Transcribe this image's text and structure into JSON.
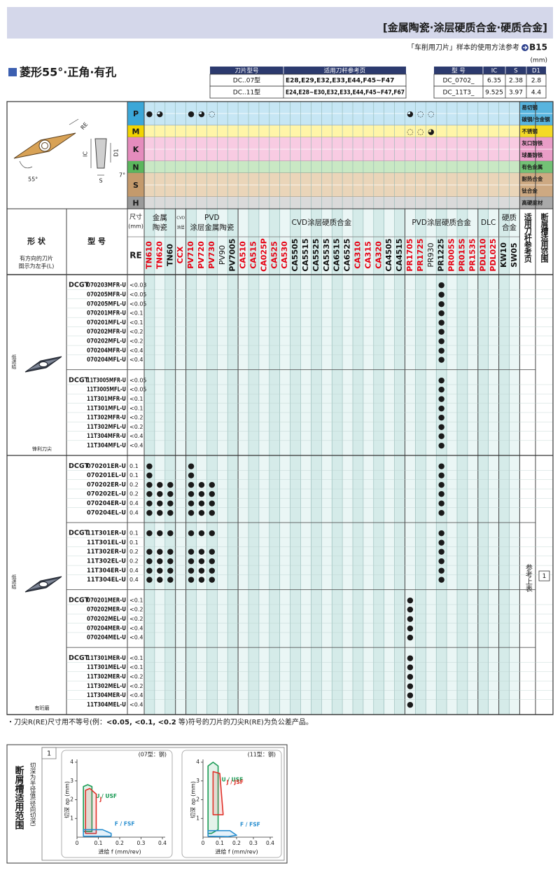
{
  "header": {
    "title": "[金属陶瓷·涂层硬质合金·硬质合金]",
    "ref_text": "「车削用刀片」样本的使用方法参考",
    "ref_page": "B15",
    "unit": "(mm)"
  },
  "section_title": "菱形55°·正角·有孔",
  "holder_table": {
    "columns": [
      "刀片型号",
      "适用刀杆参考页"
    ],
    "rows": [
      [
        "DC..07型",
        "E28,E29,E32,E33,E44,F45~F47"
      ],
      [
        "DC..11型",
        "E24,E28~E30,E32,E33,E44,F45~F47,F67"
      ]
    ]
  },
  "dim_table": {
    "columns": [
      "型 号",
      "IC",
      "S",
      "D1"
    ],
    "rows": [
      [
        "DC_0702_",
        "6.35",
        "2.38",
        "2.8"
      ],
      [
        "DC_11T3_",
        "9.525",
        "3.97",
        "4.4"
      ]
    ]
  },
  "diagram_labels": {
    "re": "RE",
    "ic": "IC",
    "d1": "D1",
    "s": "S",
    "relief": "7°",
    "angle": "55°"
  },
  "materials": [
    {
      "code": "P",
      "color": "#3ba7d8",
      "tint": "#c6e6f4",
      "labels": [
        "易切钢",
        "碳钢/合金钢"
      ],
      "symbols": {
        "TN610": "●",
        "TN620": "◕",
        "PV710": "●",
        "PV720": "◕",
        "PV730": "◌",
        "PR1705": "◕",
        "PR1725": "◌",
        "PR930": "◌"
      }
    },
    {
      "code": "M",
      "color": "#f2d400",
      "tint": "#fff5a8",
      "labels": [
        "不锈钢"
      ],
      "symbols": {
        "PR1705": "◌",
        "PR1725": "◌",
        "PR930": "◕"
      }
    },
    {
      "code": "K",
      "color": "#e58cbd",
      "tint": "#f8cbe2",
      "labels": [
        "灰口铸铁",
        "球墨铸铁"
      ],
      "symbols": {}
    },
    {
      "code": "N",
      "color": "#5bb65d",
      "tint": "#c9e8c4",
      "labels": [
        "有色金属"
      ],
      "symbols": {}
    },
    {
      "code": "S",
      "color": "#c49a6c",
      "tint": "#ead5b9",
      "labels": [
        "耐热合金",
        "钛合金"
      ],
      "symbols": {}
    },
    {
      "code": "H",
      "color": "#9a9a9a",
      "tint": "#dadada",
      "labels": [
        "高硬度材"
      ],
      "symbols": {}
    }
  ],
  "table_header": {
    "shape": "形 状",
    "shape_note": [
      "有方向的刀片",
      "图示为左手(L)"
    ],
    "model": "型 号",
    "size": [
      "尺寸",
      "(mm)"
    ],
    "re": "RE",
    "holder_ref": "适用刀杆参考页",
    "breaker": "断屑槽适用范围"
  },
  "grade_groups": [
    {
      "label": [
        "金属",
        "陶瓷"
      ],
      "grades": [
        {
          "name": "TN610",
          "color": "#e60012"
        },
        {
          "name": "TN620",
          "color": "#e60012"
        },
        {
          "name": "TN60",
          "color": "#111111"
        }
      ]
    },
    {
      "label": [
        "CVD",
        "涂层"
      ],
      "grades": [
        {
          "name": "CCX",
          "color": "#e60012"
        }
      ]
    },
    {
      "label": [
        "PVD",
        "涂层金属陶瓷"
      ],
      "grades": [
        {
          "name": "PV710",
          "color": "#e60012"
        },
        {
          "name": "PV720",
          "color": "#e60012"
        },
        {
          "name": "PV730",
          "color": "#e60012"
        },
        {
          "name": "PV90",
          "color": "#111111",
          "bold": false
        },
        {
          "name": "PV7005",
          "color": "#111111"
        }
      ]
    },
    {
      "label": [
        "CVD涂层硬质合金"
      ],
      "grades": [
        {
          "name": "CA510",
          "color": "#e60012"
        },
        {
          "name": "CA515",
          "color": "#e60012"
        },
        {
          "name": "CA025P",
          "color": "#e60012"
        },
        {
          "name": "CA525",
          "color": "#e60012"
        },
        {
          "name": "CA530",
          "color": "#e60012"
        },
        {
          "name": "CA5505",
          "color": "#111111"
        },
        {
          "name": "CA5515",
          "color": "#111111"
        },
        {
          "name": "CA5525",
          "color": "#111111"
        },
        {
          "name": "CA5535",
          "color": "#111111"
        },
        {
          "name": "CA6515",
          "color": "#111111"
        },
        {
          "name": "CA6525",
          "color": "#111111"
        },
        {
          "name": "CA310",
          "color": "#e60012"
        },
        {
          "name": "CA315",
          "color": "#e60012"
        },
        {
          "name": "CA320",
          "color": "#e60012"
        },
        {
          "name": "CA4505",
          "color": "#111111"
        },
        {
          "name": "CA4515",
          "color": "#111111"
        }
      ]
    },
    {
      "label": [
        "PVD涂层硬质合金"
      ],
      "grades": [
        {
          "name": "PR1705",
          "color": "#e60012"
        },
        {
          "name": "PR1725",
          "color": "#e60012"
        },
        {
          "name": "PR930",
          "color": "#111111",
          "bold": false
        },
        {
          "name": "PR1225",
          "color": "#111111"
        },
        {
          "name": "PR005S",
          "color": "#e60012"
        },
        {
          "name": "PR015S",
          "color": "#e60012"
        },
        {
          "name": "PR1535",
          "color": "#e60012"
        }
      ]
    },
    {
      "label": [
        "DLC"
      ],
      "grades": [
        {
          "name": "PDL010",
          "color": "#e60012"
        },
        {
          "name": "PDL025",
          "color": "#e60012"
        }
      ]
    },
    {
      "label": [
        "硬质",
        "合金"
      ],
      "grades": [
        {
          "name": "KW10",
          "color": "#111111"
        },
        {
          "name": "SW05",
          "color": "#111111"
        }
      ]
    }
  ],
  "shape_groups": [
    {
      "side_label": "低进给",
      "edge_label": "锋利刀尖",
      "series": [
        {
          "prefix": "DCGT",
          "rows": [
            {
              "model": "070203MFR-U",
              "re": "<0.03",
              "stock": {
                "PR1225": "●"
              }
            },
            {
              "model": "070205MFR-U",
              "re": "<0.05",
              "stock": {
                "PR1225": "●"
              }
            },
            {
              "model": "070205MFL-U",
              "re": "<0.05",
              "stock": {
                "PR1225": "●"
              }
            },
            {
              "model": "070201MFR-U",
              "re": "<0.1",
              "stock": {
                "PR1225": "●"
              }
            },
            {
              "model": "070201MFL-U",
              "re": "<0.1",
              "stock": {
                "PR1225": "●"
              }
            },
            {
              "model": "070202MFR-U",
              "re": "<0.2",
              "stock": {
                "PR1225": "●"
              }
            },
            {
              "model": "070202MFL-U",
              "re": "<0.2",
              "stock": {
                "PR1225": "●"
              }
            },
            {
              "model": "070204MFR-U",
              "re": "<0.4",
              "stock": {
                "PR1225": "●"
              }
            },
            {
              "model": "070204MFL-U",
              "re": "<0.4",
              "stock": {
                "PR1225": "●"
              }
            }
          ]
        },
        {
          "prefix": "DCGT",
          "rows": [
            {
              "model": "11T3005MFR-U",
              "re": "<0.05",
              "stock": {
                "PR1225": "●"
              }
            },
            {
              "model": "11T3005MFL-U",
              "re": "<0.05",
              "stock": {
                "PR1225": "●"
              }
            },
            {
              "model": "11T301MFR-U",
              "re": "<0.1",
              "stock": {
                "PR1225": "●"
              }
            },
            {
              "model": "11T301MFL-U",
              "re": "<0.1",
              "stock": {
                "PR1225": "●"
              }
            },
            {
              "model": "11T302MFR-U",
              "re": "<0.2",
              "stock": {
                "PR1225": "●"
              }
            },
            {
              "model": "11T302MFL-U",
              "re": "<0.2",
              "stock": {
                "PR1225": "●"
              }
            },
            {
              "model": "11T304MFR-U",
              "re": "<0.4",
              "stock": {
                "PR1225": "●"
              }
            },
            {
              "model": "11T304MFL-U",
              "re": "<0.4",
              "stock": {
                "PR1225": "●"
              }
            }
          ]
        }
      ]
    },
    {
      "side_label": "低进给",
      "edge_label": "有珩磨",
      "series": [
        {
          "prefix": "DCGT",
          "rows": [
            {
              "model": "070201ER-U",
              "re": "0.1",
              "stock": {
                "TN610": "●",
                "PV710": "●",
                "PR1225": "●"
              }
            },
            {
              "model": "070201EL-U",
              "re": "0.1",
              "stock": {
                "TN610": "●",
                "PV710": "●",
                "PR1225": "●"
              }
            },
            {
              "model": "070202ER-U",
              "re": "0.2",
              "stock": {
                "TN610": "●",
                "TN620": "●",
                "TN60": "●",
                "PV710": "●",
                "PV720": "●",
                "PV730": "●",
                "PR1225": "●"
              }
            },
            {
              "model": "070202EL-U",
              "re": "0.2",
              "stock": {
                "TN610": "●",
                "TN620": "●",
                "TN60": "●",
                "PV710": "●",
                "PV720": "●",
                "PV730": "●",
                "PR1225": "●"
              }
            },
            {
              "model": "070204ER-U",
              "re": "0.4",
              "stock": {
                "TN610": "●",
                "TN620": "●",
                "TN60": "●",
                "PV710": "●",
                "PV720": "●",
                "PV730": "●",
                "PR1225": "●"
              }
            },
            {
              "model": "070204EL-U",
              "re": "0.4",
              "stock": {
                "TN610": "●",
                "TN620": "●",
                "TN60": "●",
                "PV710": "●",
                "PV720": "●",
                "PV730": "●",
                "PR1225": "●"
              }
            }
          ]
        },
        {
          "prefix": "DCGT",
          "rows": [
            {
              "model": "11T301ER-U",
              "re": "0.1",
              "stock": {
                "TN610": "●",
                "TN620": "●",
                "TN60": "●",
                "PV710": "●",
                "PV720": "●",
                "PV730": "●",
                "PR1225": "●"
              }
            },
            {
              "model": "11T301EL-U",
              "re": "0.1",
              "stock": {
                "PR1225": "●"
              }
            },
            {
              "model": "11T302ER-U",
              "re": "0.2",
              "stock": {
                "TN610": "●",
                "TN620": "●",
                "TN60": "●",
                "PV710": "●",
                "PV720": "●",
                "PV730": "●",
                "PR1225": "●"
              }
            },
            {
              "model": "11T302EL-U",
              "re": "0.2",
              "stock": {
                "TN610": "●",
                "TN620": "●",
                "TN60": "●",
                "PV710": "●",
                "PV720": "●",
                "PV730": "●",
                "PR1225": "●"
              }
            },
            {
              "model": "11T304ER-U",
              "re": "0.4",
              "stock": {
                "TN610": "●",
                "TN620": "●",
                "TN60": "●",
                "PV710": "●",
                "PV720": "●",
                "PV730": "●",
                "PR1225": "●"
              }
            },
            {
              "model": "11T304EL-U",
              "re": "0.4",
              "stock": {
                "TN610": "●",
                "TN620": "●",
                "TN60": "●",
                "PV710": "●",
                "PV720": "●",
                "PV730": "●",
                "PR1225": "●"
              }
            }
          ]
        },
        {
          "prefix": "DCGT",
          "rows": [
            {
              "model": "070201MER-U",
              "re": "<0.1",
              "stock": {
                "PR1705": "●"
              }
            },
            {
              "model": "070202MER-U",
              "re": "<0.2",
              "stock": {
                "PR1705": "●"
              }
            },
            {
              "model": "070202MEL-U",
              "re": "<0.2",
              "stock": {
                "PR1705": "●"
              }
            },
            {
              "model": "070204MER-U",
              "re": "<0.4",
              "stock": {
                "PR1705": "●"
              }
            },
            {
              "model": "070204MEL-U",
              "re": "<0.4",
              "stock": {
                "PR1705": "●"
              }
            }
          ]
        },
        {
          "prefix": "DCGT",
          "rows": [
            {
              "model": "11T301MER-U",
              "re": "<0.1",
              "stock": {
                "PR1705": "●"
              }
            },
            {
              "model": "11T301MEL-U",
              "re": "<0.1",
              "stock": {
                "PR1705": "●"
              }
            },
            {
              "model": "11T302MER-U",
              "re": "<0.2",
              "stock": {
                "PR1705": "●"
              }
            },
            {
              "model": "11T302MEL-U",
              "re": "<0.2",
              "stock": {
                "PR1705": "●"
              }
            },
            {
              "model": "11T304MER-U",
              "re": "<0.4",
              "stock": {
                "PR1705": "●"
              }
            },
            {
              "model": "11T304MEL-U",
              "re": "<0.4",
              "stock": {
                "PR1705": "●"
              }
            }
          ]
        }
      ]
    }
  ],
  "ref_label": "参考上表",
  "breaker_ref": "1",
  "note": [
    "・刀尖R(RE)尺寸用不等号(例：",
    "<0.05, <0.1, <0.2",
    " 等)符号的刀片的刀尖R(RE)为负公差产品。"
  ],
  "breaker_section": {
    "title": "断屑槽适用范围",
    "note": "切深为半径值(径向切深)",
    "index": "1",
    "charts": [
      {
        "type": "region",
        "title": "(07型：钢)",
        "xlabel": "进给 f (mm/rev)",
        "ylabel": "切深 ap (mm)",
        "xlim": [
          0,
          0.4
        ],
        "ylim": [
          0,
          4
        ],
        "xticks": [
          0,
          0.1,
          0.2,
          0.3,
          0.4
        ],
        "yticks": [
          1,
          2,
          3,
          4
        ],
        "regions": [
          {
            "name": "U / USF",
            "color": "#1a9b55",
            "points": [
              [
                0.03,
                0.3
              ],
              [
                0.03,
                2.7
              ],
              [
                0.05,
                2.8
              ],
              [
                0.07,
                2.7
              ],
              [
                0.07,
                0.3
              ]
            ]
          },
          {
            "name": "J",
            "color": "#e0322a",
            "points": [
              [
                0.04,
                0.2
              ],
              [
                0.04,
                2.5
              ],
              [
                0.06,
                2.6
              ],
              [
                0.09,
                2.3
              ],
              [
                0.09,
                0.2
              ]
            ]
          },
          {
            "name": "F / FSF",
            "color": "#2a8fd0",
            "points": [
              [
                0.03,
                0.05
              ],
              [
                0.03,
                0.4
              ],
              [
                0.12,
                0.4
              ],
              [
                0.16,
                0.2
              ],
              [
                0.16,
                0.05
              ]
            ]
          }
        ]
      },
      {
        "type": "region",
        "title": "(11型：钢)",
        "xlabel": "进给 f (mm/rev)",
        "ylabel": "切深 ap (mm)",
        "xlim": [
          0,
          0.4
        ],
        "ylim": [
          0,
          4
        ],
        "xticks": [
          0,
          0.1,
          0.2,
          0.3,
          0.4
        ],
        "yticks": [
          1,
          2,
          3,
          4
        ],
        "regions": [
          {
            "name": "U / USF",
            "color": "#1a9b55",
            "points": [
              [
                0.03,
                0.2
              ],
              [
                0.03,
                3.8
              ],
              [
                0.06,
                4
              ],
              [
                0.09,
                3.8
              ],
              [
                0.09,
                0.4
              ],
              [
                0.05,
                0.2
              ]
            ]
          },
          {
            "name": "J / JSF",
            "color": "#e0322a",
            "points": [
              [
                0.06,
                1.2
              ],
              [
                0.06,
                3.5
              ],
              [
                0.1,
                3.4
              ],
              [
                0.12,
                1.2
              ]
            ]
          },
          {
            "name": "F / FSF",
            "color": "#2a8fd0",
            "points": [
              [
                0.03,
                0.05
              ],
              [
                0.03,
                0.35
              ],
              [
                0.16,
                0.35
              ],
              [
                0.2,
                0.1
              ],
              [
                0.15,
                0.03
              ]
            ]
          }
        ]
      }
    ]
  }
}
